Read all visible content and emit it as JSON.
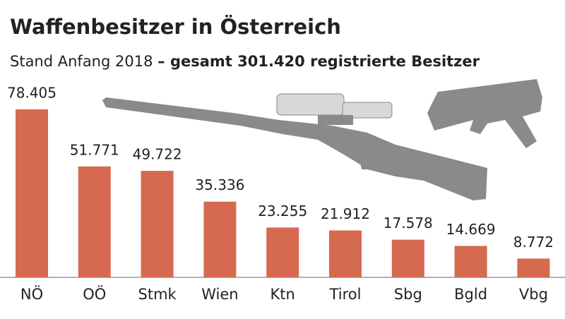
{
  "chart_data": {
    "type": "bar",
    "title": "Waffenbesitzer in Österreich",
    "subtitle": "Stand Anfang 2018",
    "subtitle_bold": "– gesamt 301.420 registrierte Besitzer",
    "categories": [
      "NÖ",
      "OÖ",
      "Stmk",
      "Wien",
      "Ktn",
      "Tirol",
      "Sbg",
      "Bgld",
      "Vbg"
    ],
    "values": [
      78405,
      51771,
      49722,
      35336,
      23255,
      21912,
      17578,
      14669,
      8772
    ],
    "value_labels": [
      "78.405",
      "51.771",
      "49.722",
      "35.336",
      "23.255",
      "21.912",
      "17.578",
      "14.669",
      "8.772"
    ],
    "color": "#d66a50"
  }
}
